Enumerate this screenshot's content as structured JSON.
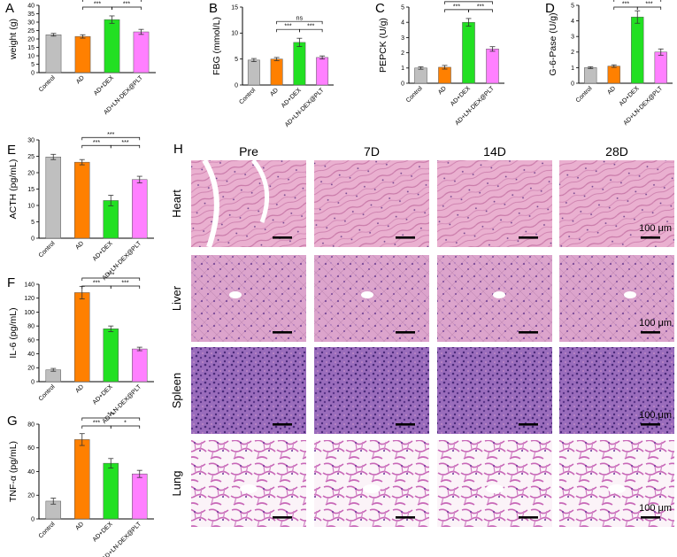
{
  "colors": {
    "Control": "#bfbfbf",
    "AD": "#ff8000",
    "AD+DEX": "#22e022",
    "AD+LN-DEX@PLT": "#ff80ff",
    "tissue_heart": "#e8a8cc",
    "tissue_liver": "#d8a0cc",
    "tissue_spleen": "#8a5cb0",
    "tissue_lung": "#f6e8f2"
  },
  "chart_data": [
    {
      "panel": "A",
      "type": "bar",
      "categories": [
        "Control",
        "AD",
        "AD+DEX",
        "AD+LN-DEX@PLT"
      ],
      "values": [
        22.5,
        21.5,
        31.5,
        24.2
      ],
      "errors": [
        0.8,
        1.0,
        2.2,
        1.5
      ],
      "ylabel": "weight (g)",
      "ylim": [
        0,
        40
      ],
      "yticks": [
        "0",
        "5",
        "10",
        "15",
        "20",
        "25",
        "30",
        "35",
        "40"
      ],
      "significance": [
        {
          "from": 1,
          "to": 3,
          "label": "*",
          "level": 0
        },
        {
          "from": 1,
          "to": 2,
          "label": "***",
          "level": 1
        },
        {
          "from": 2,
          "to": 3,
          "label": "***",
          "level": 1
        }
      ]
    },
    {
      "panel": "B",
      "type": "bar",
      "categories": [
        "Control",
        "AD",
        "AD+DEX",
        "AD+LN-DEX@PLT"
      ],
      "values": [
        4.8,
        5.0,
        8.2,
        5.3
      ],
      "errors": [
        0.3,
        0.3,
        0.8,
        0.3
      ],
      "ylabel": "FBG (mmol/L)",
      "ylim": [
        0,
        15
      ],
      "yticks": [
        "0",
        "5",
        "10",
        "15"
      ],
      "significance": [
        {
          "from": 1,
          "to": 3,
          "label": "ns",
          "level": 0
        },
        {
          "from": 1,
          "to": 2,
          "label": "***",
          "level": 1
        },
        {
          "from": 2,
          "to": 3,
          "label": "***",
          "level": 1
        }
      ]
    },
    {
      "panel": "C",
      "type": "bar",
      "categories": [
        "Control",
        "AD",
        "AD+DEX",
        "AD+LN-DEX@PLT"
      ],
      "values": [
        1.0,
        1.05,
        4.0,
        2.25
      ],
      "errors": [
        0.08,
        0.12,
        0.25,
        0.15
      ],
      "ylabel": "PEPCK (U/g)",
      "ylim": [
        0,
        5
      ],
      "yticks": [
        "0",
        "1",
        "2",
        "3",
        "4",
        "5"
      ],
      "significance": [
        {
          "from": 1,
          "to": 3,
          "label": "***",
          "level": 0
        },
        {
          "from": 1,
          "to": 2,
          "label": "***",
          "level": 1
        },
        {
          "from": 2,
          "to": 3,
          "label": "***",
          "level": 1
        }
      ]
    },
    {
      "panel": "D",
      "type": "bar",
      "categories": [
        "Control",
        "AD",
        "AD+DEX",
        "AD+LN-DEX@PLT"
      ],
      "values": [
        1.0,
        1.1,
        4.25,
        2.0
      ],
      "errors": [
        0.06,
        0.08,
        0.4,
        0.2
      ],
      "ylabel": "G-6-Pase (U/g)",
      "ylim": [
        0,
        5
      ],
      "yticks": [
        "0",
        "1",
        "2",
        "3",
        "4",
        "5"
      ],
      "significance": [
        {
          "from": 1,
          "to": 3,
          "label": "***",
          "level": 0
        },
        {
          "from": 1,
          "to": 2,
          "label": "***",
          "level": 1
        },
        {
          "from": 2,
          "to": 3,
          "label": "***",
          "level": 1
        }
      ]
    },
    {
      "panel": "E",
      "type": "bar",
      "categories": [
        "Control",
        "AD",
        "AD+DEX",
        "AD+LN-DEX@PLT"
      ],
      "values": [
        24.8,
        23.2,
        11.5,
        17.9
      ],
      "errors": [
        0.8,
        0.8,
        1.6,
        1.0
      ],
      "ylabel": "ACTH (pg/mL)",
      "ylim": [
        0,
        30
      ],
      "yticks": [
        "0",
        "5",
        "10",
        "15",
        "20",
        "25",
        "30"
      ],
      "significance": [
        {
          "from": 1,
          "to": 3,
          "label": "***",
          "level": 0
        },
        {
          "from": 1,
          "to": 2,
          "label": "***",
          "level": 1
        },
        {
          "from": 2,
          "to": 3,
          "label": "***",
          "level": 1
        }
      ]
    },
    {
      "panel": "F",
      "type": "bar",
      "categories": [
        "Control",
        "AD",
        "AD+DEX",
        "AD+LN-DEX@PLT"
      ],
      "values": [
        17,
        128,
        76,
        47
      ],
      "errors": [
        2,
        9,
        4,
        2.5
      ],
      "ylabel": "IL-6 (pg/mL)",
      "ylim": [
        0,
        140
      ],
      "yticks": [
        "0",
        "20",
        "40",
        "60",
        "80",
        "100",
        "120",
        "140"
      ],
      "significance": [
        {
          "from": 1,
          "to": 3,
          "label": "***",
          "level": 0
        },
        {
          "from": 1,
          "to": 2,
          "label": "***",
          "level": 1
        },
        {
          "from": 2,
          "to": 3,
          "label": "***",
          "level": 1
        }
      ]
    },
    {
      "panel": "G",
      "type": "bar",
      "categories": [
        "Control",
        "AD",
        "AD+DEX",
        "AD+LN-DEX@PLT"
      ],
      "values": [
        15,
        67,
        47,
        38
      ],
      "errors": [
        2.5,
        5,
        4,
        3
      ],
      "ylabel": "TNF-α (pg/mL)",
      "ylim": [
        0,
        80
      ],
      "yticks": [
        "0",
        "20",
        "40",
        "60",
        "80"
      ],
      "significance": [
        {
          "from": 1,
          "to": 3,
          "label": "***",
          "level": 0
        },
        {
          "from": 1,
          "to": 2,
          "label": "***",
          "level": 1
        },
        {
          "from": 2,
          "to": 3,
          "label": "*",
          "level": 1
        }
      ]
    }
  ],
  "histology": {
    "panel": "H",
    "columns": [
      "Pre",
      "7D",
      "14D",
      "28D"
    ],
    "rows": [
      "Heart",
      "Liver",
      "Spleen",
      "Lung"
    ],
    "scale_label": "100 μm"
  }
}
